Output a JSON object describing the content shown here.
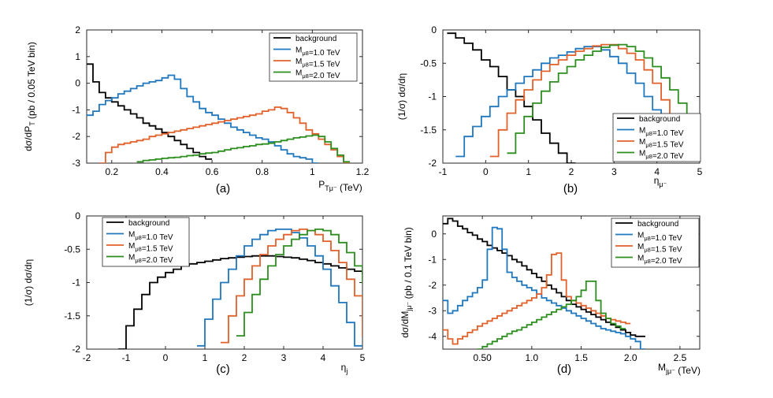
{
  "chart_data": [
    {
      "type": "line",
      "panel": "(a)",
      "xlabel": "P_{T_{μ⁻}} (TeV)",
      "ylabel": "dσ/dP_T (pb / 0.05 TeV bin)",
      "xlim": [
        0.1,
        1.2
      ],
      "ylim": [
        -3,
        2
      ],
      "xticks": [
        0.2,
        0.4,
        0.6,
        0.8,
        1.0,
        1.2
      ],
      "xtick_labels": [
        "0.2",
        "0.4",
        "0.6",
        "0.8",
        "1",
        "1.2"
      ],
      "yticks": [
        -3,
        -2,
        -1,
        0,
        1,
        2
      ],
      "ytick_labels": [
        "-3",
        "-2",
        "-1",
        "0",
        "1",
        "2"
      ],
      "legend_position": "top-right",
      "legend": [
        "background",
        "M_{μ8}=1.0 TeV",
        "M_{μ8}=1.5 TeV",
        "M_{μ8}=2.0 TeV"
      ],
      "series": [
        {
          "name": "background",
          "color": "#000000",
          "x0": 0.1,
          "dx": 0.025,
          "values": [
            0.72,
            0.05,
            -0.35,
            -0.55,
            -0.7,
            -0.85,
            -1.0,
            -1.15,
            -1.3,
            -1.5,
            -1.6,
            -1.72,
            -1.85,
            -2.0,
            -2.15,
            -2.3,
            -2.45,
            -2.6,
            -2.75,
            -2.85
          ]
        },
        {
          "name": "M_{μ8}=1.0 TeV",
          "color": "#1f77bd",
          "x0": 0.1,
          "dx": 0.025,
          "values": [
            -1.2,
            -1.05,
            -0.8,
            -0.65,
            -0.55,
            -0.4,
            -0.3,
            -0.2,
            -0.1,
            0.0,
            0.05,
            0.1,
            0.2,
            0.3,
            0.15,
            -0.2,
            -0.5,
            -0.7,
            -0.95,
            -1.1,
            -1.2,
            -1.35,
            -1.5,
            -1.65,
            -1.75,
            -1.85,
            -1.95,
            -2.05,
            -2.1,
            -2.2,
            -2.35,
            -2.5,
            -2.65,
            -2.75,
            -2.8,
            -2.85,
            -3.0
          ]
        },
        {
          "name": "M_{μ8}=1.5 TeV",
          "color": "#e2612a",
          "x0": 0.15,
          "dx": 0.025,
          "values": [
            -3.0,
            -2.6,
            -2.4,
            -2.3,
            -2.25,
            -2.2,
            -2.15,
            -2.1,
            -2.0,
            -1.95,
            -1.9,
            -1.85,
            -1.8,
            -1.75,
            -1.7,
            -1.65,
            -1.6,
            -1.55,
            -1.5,
            -1.45,
            -1.4,
            -1.35,
            -1.3,
            -1.25,
            -1.2,
            -1.15,
            -1.05,
            -1.0,
            -0.9,
            -0.95,
            -1.1,
            -1.3,
            -1.5,
            -1.75,
            -1.9,
            -2.1,
            -2.3,
            -2.5,
            -2.75,
            -3.0
          ]
        },
        {
          "name": "M_{μ8}=2.0 TeV",
          "color": "#2c8e1e",
          "x0": 0.3,
          "dx": 0.025,
          "values": [
            -2.95,
            -2.9,
            -2.88,
            -2.85,
            -2.82,
            -2.8,
            -2.78,
            -2.75,
            -2.72,
            -2.7,
            -2.65,
            -2.62,
            -2.6,
            -2.55,
            -2.5,
            -2.45,
            -2.42,
            -2.38,
            -2.35,
            -2.3,
            -2.28,
            -2.25,
            -2.2,
            -2.15,
            -2.1,
            -2.05,
            -2.02,
            -1.98,
            -1.95,
            -2.0,
            -2.2,
            -2.45,
            -2.7,
            -2.95
          ]
        }
      ]
    },
    {
      "type": "line",
      "panel": "(b)",
      "xlabel": "η_{μ⁻}",
      "ylabel": "(1/σ) dσ/dη",
      "xlim": [
        -1,
        5
      ],
      "ylim": [
        -2,
        0
      ],
      "xticks": [
        -1,
        0,
        1,
        2,
        3,
        4,
        5
      ],
      "xtick_labels": [
        "-1",
        "0",
        "1",
        "2",
        "3",
        "4",
        "5"
      ],
      "yticks": [
        -2,
        -1.5,
        -1,
        -0.5,
        0
      ],
      "ytick_labels": [
        "-2",
        "-1.5",
        "-1",
        "-0.5",
        "0"
      ],
      "legend_position": "bottom-right",
      "legend": [
        "background",
        "M_{μ8}=1.0 TeV",
        "M_{μ8}=1.5 TeV",
        "M_{μ8}=2.0 TeV"
      ],
      "series": [
        {
          "name": "background",
          "color": "#000000",
          "x0": -0.9,
          "dx": 0.2,
          "values": [
            -0.05,
            -0.12,
            -0.2,
            -0.3,
            -0.45,
            -0.55,
            -0.7,
            -0.9,
            -1.0,
            -1.15,
            -1.35,
            -1.55,
            -1.7,
            -1.85,
            -2.0
          ]
        },
        {
          "name": "M_{μ8}=1.0 TeV",
          "color": "#1f77bd",
          "x0": -0.7,
          "dx": 0.2,
          "values": [
            -1.9,
            -1.6,
            -1.45,
            -1.3,
            -1.15,
            -1.0,
            -0.9,
            -0.8,
            -0.7,
            -0.6,
            -0.5,
            -0.42,
            -0.38,
            -0.33,
            -0.28,
            -0.25,
            -0.25,
            -0.3,
            -0.4,
            -0.5,
            -0.65,
            -0.8,
            -1.0,
            -1.2,
            -1.45,
            -1.7,
            -1.95
          ]
        },
        {
          "name": "M_{μ8}=1.5 TeV",
          "color": "#e2612a",
          "x0": 0.1,
          "dx": 0.2,
          "values": [
            -1.9,
            -1.5,
            -1.25,
            -1.05,
            -0.9,
            -0.75,
            -0.62,
            -0.52,
            -0.45,
            -0.38,
            -0.32,
            -0.28,
            -0.24,
            -0.22,
            -0.22,
            -0.28,
            -0.35,
            -0.45,
            -0.6,
            -0.8,
            -1.05,
            -1.3,
            -1.6
          ]
        },
        {
          "name": "M_{μ8}=2.0 TeV",
          "color": "#2c8e1e",
          "x0": 0.5,
          "dx": 0.2,
          "values": [
            -1.85,
            -1.55,
            -1.3,
            -1.1,
            -0.92,
            -0.78,
            -0.65,
            -0.55,
            -0.45,
            -0.38,
            -0.32,
            -0.26,
            -0.23,
            -0.22,
            -0.25,
            -0.32,
            -0.42,
            -0.55,
            -0.72,
            -0.9,
            -1.1,
            -1.35,
            -1.6
          ]
        }
      ]
    },
    {
      "type": "line",
      "panel": "(c)",
      "xlabel": "η_j",
      "ylabel": "(1/σ) dσ/dη",
      "xlim": [
        -2,
        5
      ],
      "ylim": [
        -2,
        0
      ],
      "xticks": [
        -2,
        -1,
        0,
        1,
        2,
        3,
        4,
        5
      ],
      "xtick_labels": [
        "-2",
        "-1",
        "0",
        "1",
        "2",
        "3",
        "4",
        "5"
      ],
      "yticks": [
        -2,
        -1.5,
        -1,
        -0.5,
        0
      ],
      "ytick_labels": [
        "-2",
        "-1.5",
        "-1",
        "-0.5",
        "0"
      ],
      "legend_position": "top-left",
      "legend": [
        "background",
        "M_{μ8}=1.0 TeV",
        "M_{μ8}=1.5 TeV",
        "M_{μ8}=2.0 TeV"
      ],
      "series": [
        {
          "name": "background",
          "color": "#000000",
          "x0": -1.2,
          "dx": 0.2,
          "values": [
            -2.0,
            -1.65,
            -1.4,
            -1.18,
            -1.0,
            -0.92,
            -0.85,
            -0.8,
            -0.75,
            -0.72,
            -0.7,
            -0.68,
            -0.66,
            -0.64,
            -0.63,
            -0.62,
            -0.61,
            -0.6,
            -0.6,
            -0.6,
            -0.61,
            -0.62,
            -0.63,
            -0.65,
            -0.67,
            -0.7,
            -0.72,
            -0.75,
            -0.78,
            -0.8,
            -0.83,
            -0.87,
            -0.9,
            -0.94,
            -1.0
          ]
        },
        {
          "name": "M_{μ8}=1.0 TeV",
          "color": "#1f77bd",
          "x0": 0.8,
          "dx": 0.2,
          "values": [
            -1.95,
            -1.55,
            -1.25,
            -1.0,
            -0.8,
            -0.6,
            -0.45,
            -0.35,
            -0.28,
            -0.22,
            -0.2,
            -0.2,
            -0.25,
            -0.33,
            -0.45,
            -0.6,
            -0.8,
            -1.05,
            -1.3,
            -1.6,
            -1.95
          ]
        },
        {
          "name": "M_{μ8}=1.5 TeV",
          "color": "#e2612a",
          "x0": 1.4,
          "dx": 0.2,
          "values": [
            -1.9,
            -1.5,
            -1.2,
            -0.95,
            -0.75,
            -0.58,
            -0.45,
            -0.35,
            -0.28,
            -0.22,
            -0.2,
            -0.22,
            -0.28,
            -0.38,
            -0.52,
            -0.7,
            -0.95,
            -1.2,
            -1.8
          ]
        },
        {
          "name": "M_{μ8}=2.0 TeV",
          "color": "#2c8e1e",
          "x0": 1.8,
          "dx": 0.2,
          "values": [
            -1.8,
            -1.45,
            -1.18,
            -0.95,
            -0.75,
            -0.58,
            -0.45,
            -0.35,
            -0.28,
            -0.22,
            -0.2,
            -0.22,
            -0.28,
            -0.4,
            -0.55,
            -0.75,
            -1.0
          ]
        }
      ]
    },
    {
      "type": "line",
      "panel": "(d)",
      "xlabel": "M_{jμ⁻} (TeV)",
      "ylabel": "dσ/dM_{jμ⁻} (pb / 0.1 TeV bin)",
      "xlim": [
        0.1,
        2.7
      ],
      "ylim": [
        -4.5,
        0.7
      ],
      "xticks": [
        0.5,
        1.0,
        1.5,
        2.0,
        2.5
      ],
      "xtick_labels": [
        "0.50",
        "1.0",
        "1.5",
        "2.0",
        "2.5"
      ],
      "yticks": [
        -4,
        -3,
        -2,
        -1,
        0
      ],
      "ytick_labels": [
        "-4",
        "-3",
        "-2",
        "-1",
        "0"
      ],
      "legend_position": "top-right",
      "legend": [
        "background",
        "M_{μ8}=1.0 TeV",
        "M_{μ8}=1.5 TeV",
        "M_{μ8}=2.0 TeV"
      ],
      "series": [
        {
          "name": "background",
          "color": "#000000",
          "x0": 0.1,
          "dx": 0.05,
          "values": [
            0.4,
            0.6,
            0.5,
            0.3,
            0.2,
            0.05,
            -0.05,
            -0.2,
            -0.3,
            -0.45,
            -0.55,
            -0.65,
            -0.75,
            -0.85,
            -1.0,
            -1.1,
            -1.25,
            -1.4,
            -1.55,
            -1.7,
            -1.85,
            -2.0,
            -2.15,
            -2.3,
            -2.45,
            -2.6,
            -2.75,
            -2.85,
            -2.95,
            -3.05,
            -3.15,
            -3.25,
            -3.35,
            -3.45,
            -3.55,
            -3.65,
            -3.75,
            -3.85,
            -3.95,
            -4.0,
            -4.0
          ]
        },
        {
          "name": "M_{μ8}=1.0 TeV",
          "color": "#1f77bd",
          "x0": 0.1,
          "dx": 0.05,
          "values": [
            -2.6,
            -3.1,
            -3.0,
            -2.8,
            -2.6,
            -2.45,
            -2.3,
            -2.1,
            -1.8,
            -0.6,
            0.25,
            0.2,
            -0.6,
            -1.5,
            -1.7,
            -1.85,
            -2.0,
            -2.1,
            -2.2,
            -2.35,
            -2.5,
            -2.6,
            -2.7,
            -2.8,
            -2.9,
            -3.0,
            -3.1,
            -3.2,
            -3.3,
            -3.4,
            -3.5,
            -3.6,
            -3.7,
            -3.75,
            -3.8,
            -3.85,
            -3.9,
            -4.0,
            -4.1,
            -4.2,
            -4.5
          ]
        },
        {
          "name": "M_{μ8}=1.5 TeV",
          "color": "#e2612a",
          "x0": 0.1,
          "dx": 0.05,
          "values": [
            -3.75,
            -4.1,
            -4.3,
            -4.1,
            -4.0,
            -3.85,
            -3.75,
            -3.6,
            -3.5,
            -3.4,
            -3.3,
            -3.2,
            -3.1,
            -3.0,
            -2.9,
            -2.8,
            -2.7,
            -2.6,
            -2.5,
            -2.35,
            -2.1,
            -1.6,
            -0.8,
            -0.75,
            -1.8,
            -2.45,
            -2.6,
            -2.7,
            -2.8,
            -2.9,
            -3.0,
            -3.1,
            -3.2,
            -3.3,
            -3.35,
            -3.4,
            -3.45,
            -3.5
          ]
        },
        {
          "name": "M_{μ8}=2.0 TeV",
          "color": "#2c8e1e",
          "x0": 0.45,
          "dx": 0.05,
          "values": [
            -4.5,
            -4.4,
            -4.3,
            -4.2,
            -4.1,
            -4.0,
            -3.9,
            -3.8,
            -3.75,
            -3.65,
            -3.55,
            -3.45,
            -3.35,
            -3.25,
            -3.15,
            -3.05,
            -2.95,
            -2.85,
            -2.75,
            -2.6,
            -2.45,
            -2.2,
            -1.85,
            -1.85,
            -2.6,
            -3.1,
            -3.3,
            -3.5,
            -3.6,
            -3.7
          ]
        }
      ]
    }
  ]
}
